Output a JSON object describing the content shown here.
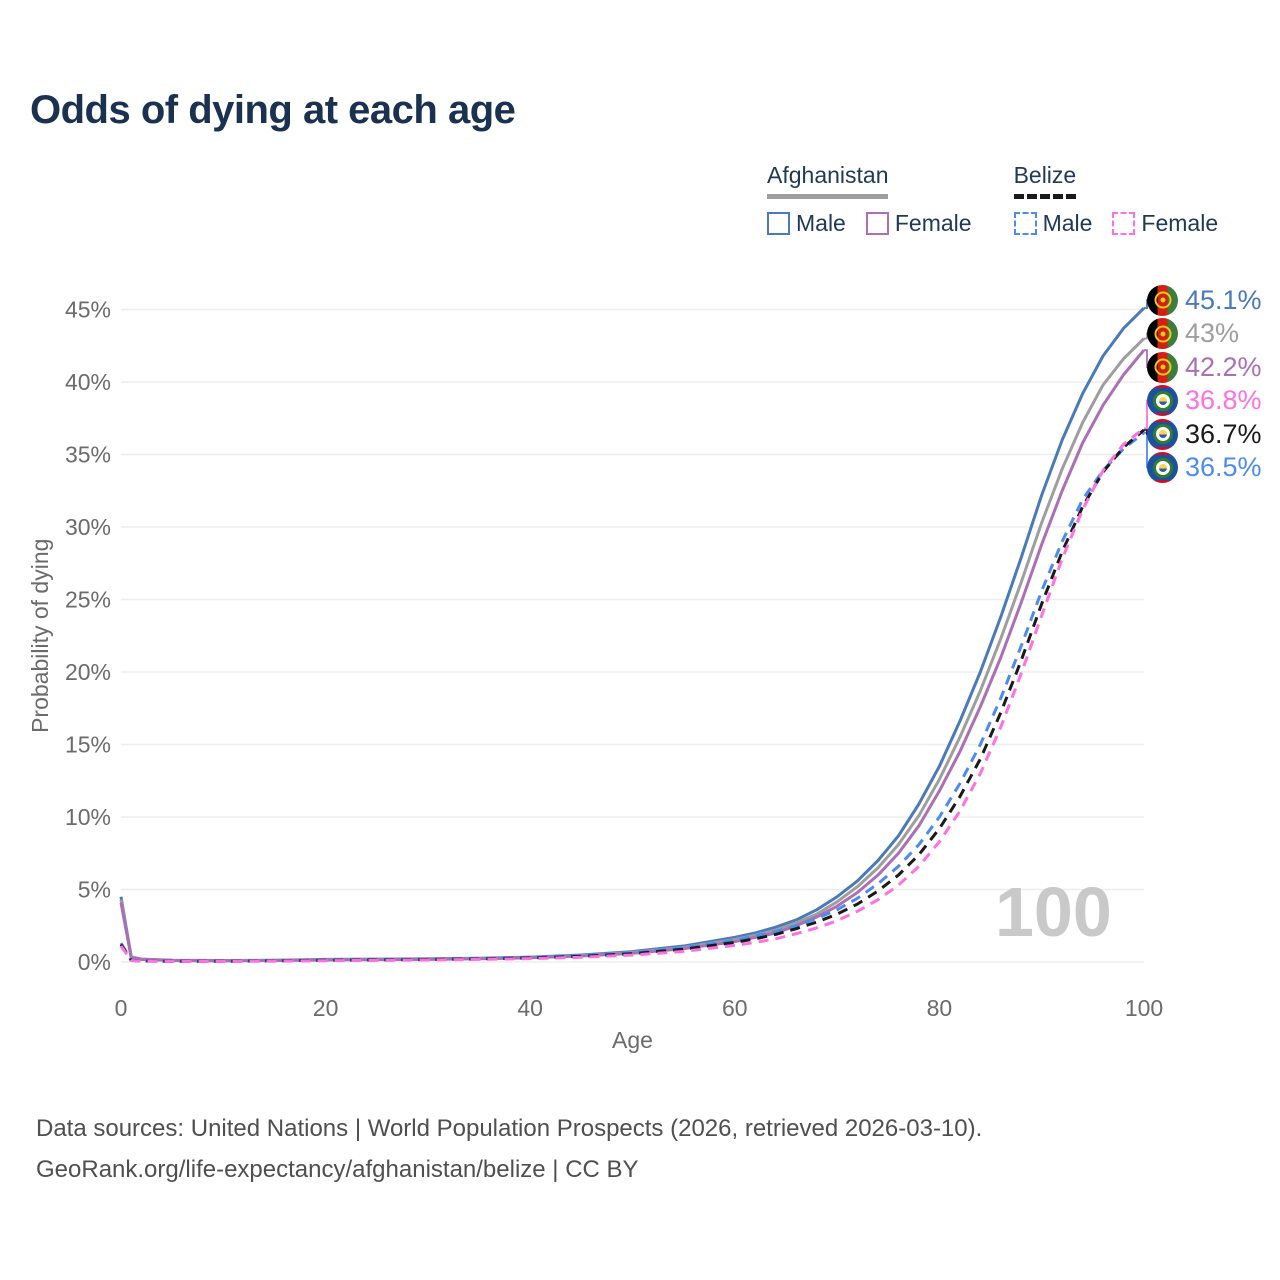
{
  "title": "Odds of dying at each age",
  "legend": {
    "groups": [
      {
        "title": "Afghanistan",
        "style": "solid",
        "items": [
          {
            "label": "Male"
          },
          {
            "label": "Female"
          }
        ]
      },
      {
        "title": "Belize",
        "style": "dashed",
        "items": [
          {
            "label": "Male"
          },
          {
            "label": "Female"
          }
        ]
      }
    ]
  },
  "colors": {
    "af_male": "#4a7ab8",
    "af_avg": "#9e9e9e",
    "af_female": "#ab6fb5",
    "bz_male": "#4d8bf0",
    "bz_avg": "#1a1a1a",
    "bz_female": "#ff70e1",
    "title_text": "#1b3150",
    "legend_text": "#203a56",
    "axis_text": "#6b6b6b",
    "grid": "#ededed",
    "footer_text": "#4f4f4f",
    "watermark": "#c9c9c9"
  },
  "end_labels": [
    {
      "value": "45.1%",
      "flag": "afghanistan",
      "color": "#4a7ab8"
    },
    {
      "value": "43%",
      "flag": "afghanistan",
      "color": "#9e9e9e"
    },
    {
      "value": "42.2%",
      "flag": "afghanistan",
      "color": "#ab6fb5"
    },
    {
      "value": "36.8%",
      "flag": "belize",
      "color": "#ff70e1"
    },
    {
      "value": "36.7%",
      "flag": "belize",
      "color": "#1a1a1a"
    },
    {
      "value": "36.5%",
      "flag": "belize",
      "color": "#4d8bf0"
    }
  ],
  "watermark": "100",
  "footer": {
    "line1": "Data sources: United Nations | World Population Prospects (2026, retrieved 2026-03-10).",
    "line2": "GeoRank.org/life-expectancy/afghanistan/belize | CC BY"
  },
  "chart_data": {
    "type": "line",
    "title": "Odds of dying at each age",
    "xlabel": "Age",
    "ylabel": "Probability of dying",
    "xlim": [
      0,
      100
    ],
    "ylim_percent": [
      0,
      46
    ],
    "grid": "horizontal",
    "legend_position": "top-right",
    "x_ticks": [
      0,
      20,
      40,
      60,
      80,
      100
    ],
    "y_ticks": [
      {
        "value": 0,
        "label": "0%"
      },
      {
        "value": 5,
        "label": "5%"
      },
      {
        "value": 10,
        "label": "10%"
      },
      {
        "value": 15,
        "label": "15%"
      },
      {
        "value": 20,
        "label": "20%"
      },
      {
        "value": 25,
        "label": "25%"
      },
      {
        "value": 30,
        "label": "30%"
      },
      {
        "value": 35,
        "label": "35%"
      },
      {
        "value": 40,
        "label": "40%"
      },
      {
        "value": 45,
        "label": "45%"
      }
    ],
    "ages": [
      0,
      1,
      2,
      5,
      10,
      15,
      20,
      25,
      30,
      35,
      40,
      45,
      50,
      55,
      60,
      62,
      64,
      66,
      68,
      70,
      72,
      74,
      76,
      78,
      80,
      82,
      84,
      86,
      88,
      90,
      92,
      94,
      96,
      98,
      100
    ],
    "series": [
      {
        "name": "Afghanistan Male",
        "style": "solid",
        "color": "#4a7ab8",
        "end_label": "45.1%",
        "label_row": 0,
        "values": [
          4.5,
          0.35,
          0.2,
          0.12,
          0.1,
          0.12,
          0.18,
          0.2,
          0.22,
          0.26,
          0.34,
          0.48,
          0.72,
          1.1,
          1.7,
          2.0,
          2.4,
          2.9,
          3.6,
          4.5,
          5.6,
          7.0,
          8.7,
          10.9,
          13.5,
          16.6,
          20.0,
          23.8,
          27.9,
          32.2,
          36.0,
          39.2,
          41.8,
          43.7,
          45.1
        ]
      },
      {
        "name": "Afghanistan (both sexes)",
        "style": "solid",
        "color": "#9e9e9e",
        "end_label": "43%",
        "label_row": 1,
        "values": [
          4.3,
          0.33,
          0.19,
          0.11,
          0.09,
          0.11,
          0.16,
          0.18,
          0.2,
          0.24,
          0.31,
          0.44,
          0.66,
          1.0,
          1.55,
          1.85,
          2.2,
          2.7,
          3.3,
          4.15,
          5.2,
          6.5,
          8.1,
          10.1,
          12.6,
          15.5,
          18.7,
          22.3,
          26.2,
          30.3,
          34.0,
          37.2,
          39.8,
          41.6,
          43.0
        ]
      },
      {
        "name": "Afghanistan Female",
        "style": "solid",
        "color": "#ab6fb5",
        "end_label": "42.2%",
        "label_row": 2,
        "values": [
          4.1,
          0.31,
          0.18,
          0.1,
          0.08,
          0.1,
          0.14,
          0.16,
          0.18,
          0.22,
          0.29,
          0.41,
          0.6,
          0.92,
          1.4,
          1.7,
          2.0,
          2.5,
          3.1,
          3.85,
          4.8,
          6.0,
          7.5,
          9.4,
          11.8,
          14.5,
          17.6,
          21.0,
          24.8,
          28.8,
          32.5,
          35.8,
          38.4,
          40.5,
          42.2
        ]
      },
      {
        "name": "Belize Male",
        "style": "dashed",
        "color": "#4d8bf0",
        "end_label": "36.5%",
        "label_row": 5,
        "values": [
          1.3,
          0.12,
          0.08,
          0.05,
          0.05,
          0.09,
          0.14,
          0.16,
          0.19,
          0.24,
          0.31,
          0.44,
          0.64,
          0.98,
          1.5,
          1.8,
          2.1,
          2.5,
          3.0,
          3.6,
          4.4,
          5.4,
          6.6,
          8.1,
          10.0,
          12.3,
          15.0,
          18.2,
          21.8,
          25.6,
          29.0,
          31.9,
          33.9,
          35.4,
          36.5
        ]
      },
      {
        "name": "Belize (both sexes)",
        "style": "dashed",
        "color": "#1a1a1a",
        "end_label": "36.7%",
        "label_row": 4,
        "values": [
          1.2,
          0.11,
          0.07,
          0.05,
          0.05,
          0.08,
          0.12,
          0.14,
          0.17,
          0.21,
          0.28,
          0.39,
          0.57,
          0.88,
          1.35,
          1.6,
          1.9,
          2.3,
          2.75,
          3.3,
          4.0,
          4.9,
          6.0,
          7.4,
          9.2,
          11.4,
          14.0,
          17.2,
          20.8,
          24.7,
          28.3,
          31.4,
          33.8,
          35.5,
          36.7
        ]
      },
      {
        "name": "Belize Female",
        "style": "dashed",
        "color": "#ff70e1",
        "end_label": "36.8%",
        "label_row": 3,
        "values": [
          1.1,
          0.1,
          0.06,
          0.04,
          0.04,
          0.06,
          0.09,
          0.11,
          0.14,
          0.18,
          0.23,
          0.33,
          0.48,
          0.73,
          1.15,
          1.35,
          1.6,
          1.95,
          2.35,
          2.85,
          3.5,
          4.3,
          5.3,
          6.6,
          8.3,
          10.4,
          13.0,
          16.2,
          19.9,
          23.9,
          27.8,
          31.2,
          33.9,
          35.7,
          36.8
        ]
      }
    ]
  }
}
